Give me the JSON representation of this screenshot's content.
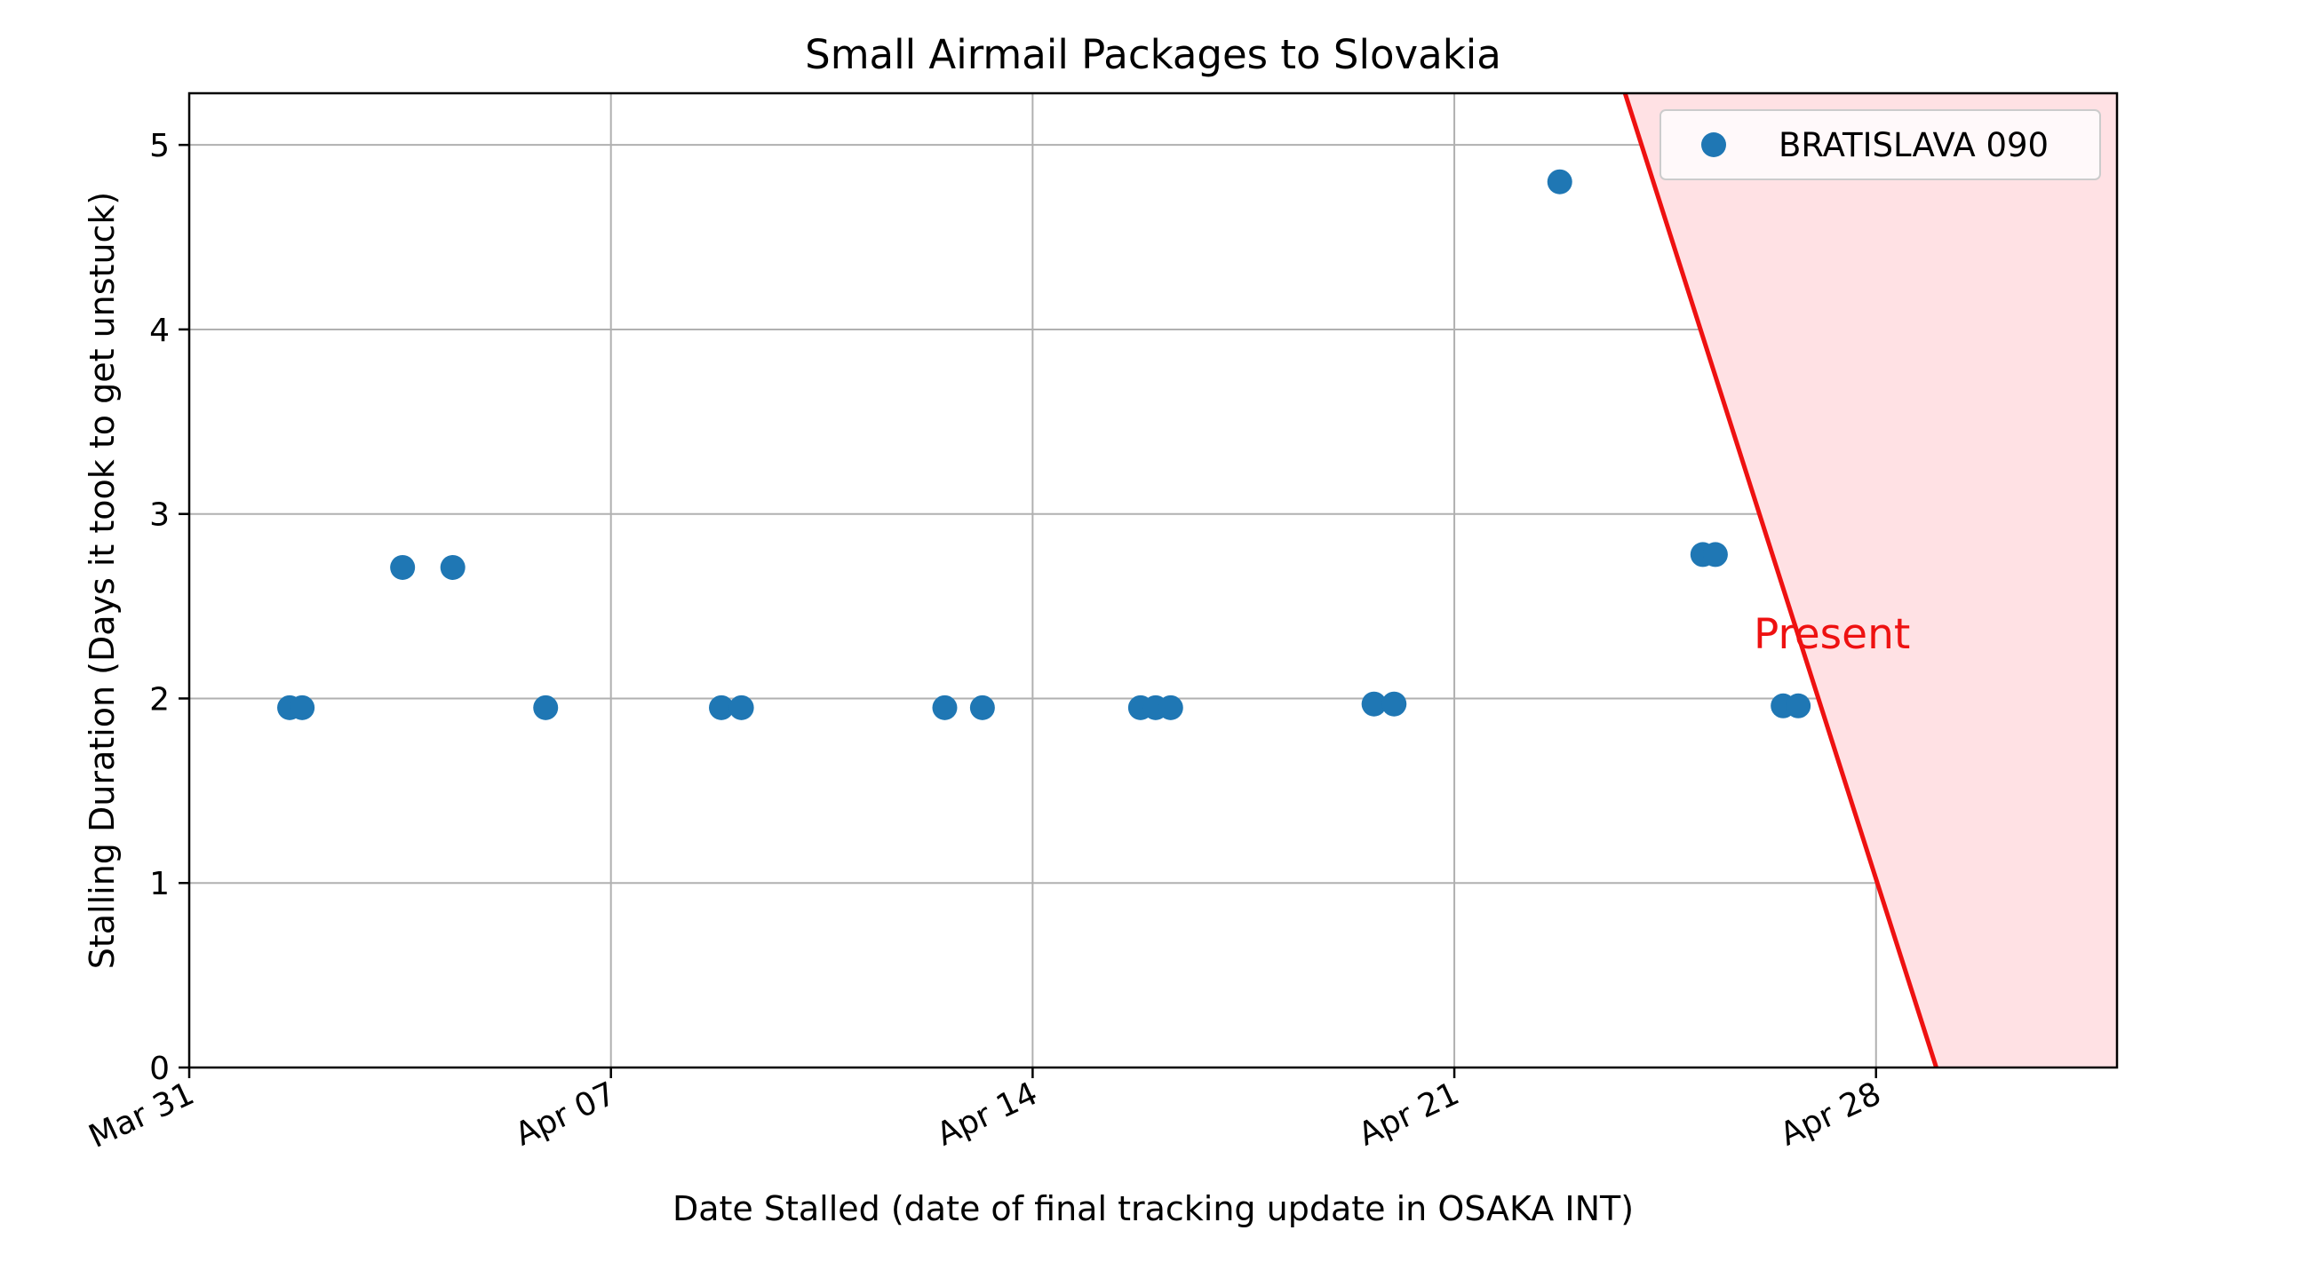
{
  "chart_data": {
    "type": "scatter",
    "title": "Small Airmail Packages to Slovakia",
    "xlabel": "Date Stalled (date of final tracking update in OSAKA INT)",
    "ylabel": "Stalling Duration (Days it took to get unstuck)",
    "xlim": [
      "2024-03-31T00:00",
      "2024-05-02T00:00"
    ],
    "ylim": [
      0,
      5.28
    ],
    "x_tick_labels": [
      "Mar 31",
      "Apr 07",
      "Apr 14",
      "Apr 21",
      "Apr 28"
    ],
    "x_tick_dates": [
      "2024-03-31",
      "2024-04-07",
      "2024-04-14",
      "2024-04-21",
      "2024-04-28"
    ],
    "y_ticks": [
      0,
      1,
      2,
      3,
      4,
      5
    ],
    "grid": true,
    "legend_position": "top-right",
    "series": [
      {
        "name": "BRATISLAVA 090",
        "color": "#1f77b4",
        "points": [
          {
            "x": "2024-04-01T16:00",
            "y": 1.95
          },
          {
            "x": "2024-04-01T21:00",
            "y": 1.95
          },
          {
            "x": "2024-04-03T13:00",
            "y": 2.71
          },
          {
            "x": "2024-04-04T09:00",
            "y": 2.71
          },
          {
            "x": "2024-04-05T22:00",
            "y": 1.95
          },
          {
            "x": "2024-04-08T20:00",
            "y": 1.95
          },
          {
            "x": "2024-04-09T04:00",
            "y": 1.95
          },
          {
            "x": "2024-04-12T13:00",
            "y": 1.95
          },
          {
            "x": "2024-04-13T04:00",
            "y": 1.95
          },
          {
            "x": "2024-04-15T19:00",
            "y": 1.95
          },
          {
            "x": "2024-04-16T01:00",
            "y": 1.95
          },
          {
            "x": "2024-04-16T07:00",
            "y": 1.95
          },
          {
            "x": "2024-04-19T16:00",
            "y": 1.97
          },
          {
            "x": "2024-04-20T00:00",
            "y": 1.97
          },
          {
            "x": "2024-04-22T18:00",
            "y": 4.8
          },
          {
            "x": "2024-04-25T03:00",
            "y": 2.78
          },
          {
            "x": "2024-04-25T08:00",
            "y": 2.78
          },
          {
            "x": "2024-04-26T11:00",
            "y": 1.96
          },
          {
            "x": "2024-04-26T17:00",
            "y": 1.96
          }
        ]
      }
    ],
    "present_region": {
      "label": "Present",
      "line_color": "#ee1111",
      "fill_color": "#ffe1e4",
      "line_points": [
        {
          "x": "2024-04-23T20:00",
          "y": 5.28
        },
        {
          "x": "2024-04-29T00:00",
          "y": 0
        }
      ],
      "label_anchor": {
        "x": "2024-04-27T00:00",
        "y": 2.35
      }
    }
  }
}
